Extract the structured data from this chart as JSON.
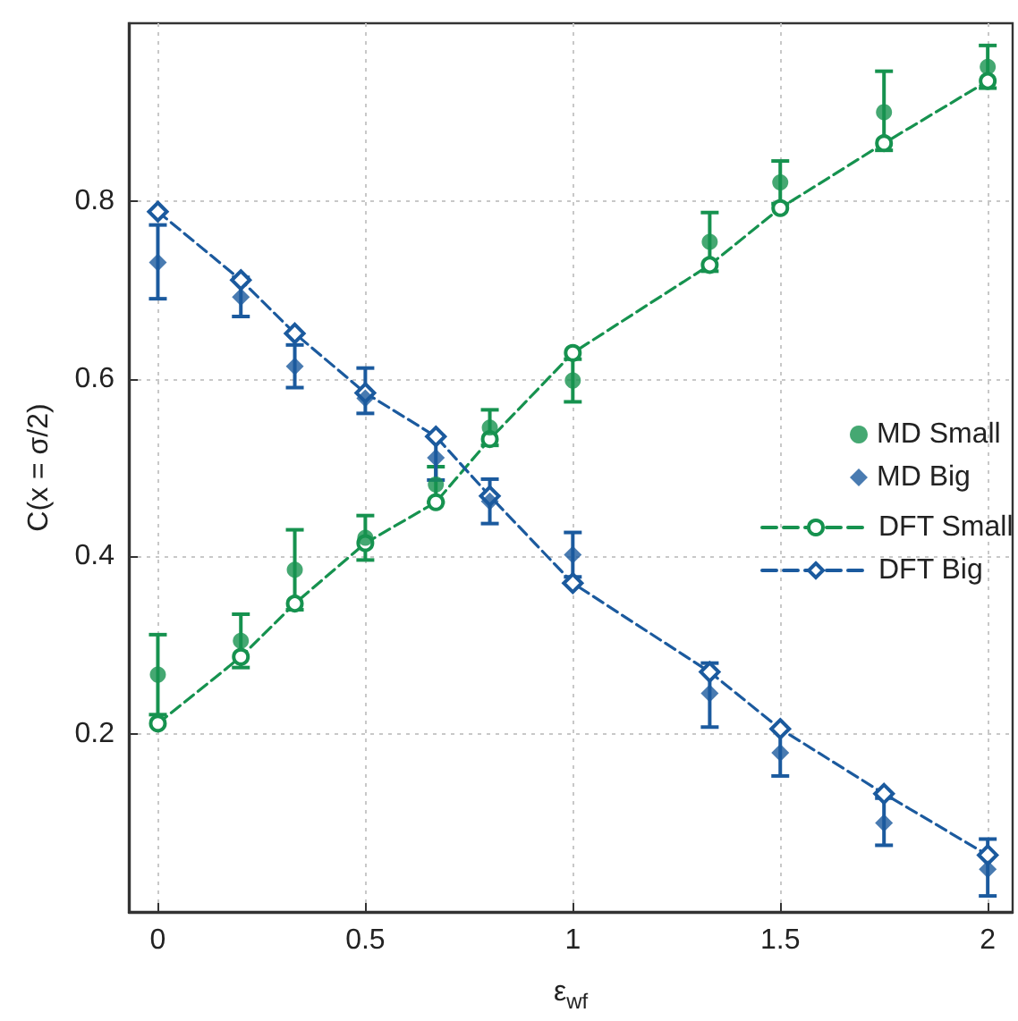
{
  "chart_data": {
    "type": "scatter",
    "xlabel": "ε$_{wf}$",
    "ylabel": "C(x = σ/2)",
    "xlim": [
      -0.07,
      2.06
    ],
    "xticks": [
      0,
      0.5,
      1,
      1.5,
      2
    ],
    "ylim": [
      0,
      1
    ],
    "yticks": [
      0.2,
      0.4,
      0.6,
      0.8
    ],
    "grid": true,
    "legend": "right",
    "series": [
      {
        "name": "MD Small",
        "marker": "circle",
        "color": "#16924f",
        "x": [
          0,
          0.2,
          0.33,
          0.5,
          0.67,
          0.8,
          1,
          1.33,
          1.5,
          1.75,
          2
        ],
        "values": [
          0.267,
          0.305,
          0.385,
          0.421,
          0.481,
          0.545,
          0.598,
          0.754,
          0.821,
          0.9,
          0.951
        ],
        "errors": [
          0.045,
          0.03,
          0.045,
          0.025,
          0.02,
          0.02,
          0.024,
          0.033,
          0.024,
          [
            0.857,
            0.946
          ],
          0.024
        ]
      },
      {
        "name": "MD Big",
        "marker": "diamond",
        "color": "#1b5a9e",
        "x": [
          0,
          0.2,
          0.33,
          0.5,
          0.67,
          0.8,
          1,
          1.33,
          1.5,
          1.75,
          2
        ],
        "values": [
          0.731,
          0.692,
          0.614,
          0.578,
          0.511,
          0.462,
          0.402,
          0.246,
          0.179,
          0.1,
          0.048
        ],
        "errors": [
          [
            0.69,
            0.773
          ],
          0.022,
          0.024,
          [
            0.561,
            0.612
          ],
          0.025,
          0.025,
          0.025,
          [
            0.208,
            0.28
          ],
          [
            0.153,
            0.206
          ],
          [
            0.075,
            0.128
          ],
          [
            0.018,
            0.082
          ]
        ]
      },
      {
        "name": "DFT Small",
        "type": "line",
        "marker": "circle",
        "line_style": "dashed",
        "color": "#16924f",
        "x": [
          0,
          0.2,
          0.33,
          0.5,
          0.67,
          0.8,
          1,
          1.33,
          1.5,
          1.75,
          2
        ],
        "values": [
          0.212,
          0.287,
          0.347,
          0.415,
          0.461,
          0.532,
          0.629,
          0.728,
          0.792,
          0.865,
          0.935
        ]
      },
      {
        "name": "DFT Big",
        "type": "line",
        "marker": "diamond",
        "line_style": "dashed",
        "color": "#1b5a9e",
        "x": [
          0,
          0.2,
          0.33,
          0.5,
          0.67,
          0.8,
          1,
          1.33,
          1.5,
          1.75,
          2
        ],
        "values": [
          0.788,
          0.711,
          0.651,
          0.584,
          0.535,
          0.468,
          0.37,
          0.27,
          0.206,
          0.133,
          0.064
        ]
      }
    ]
  }
}
